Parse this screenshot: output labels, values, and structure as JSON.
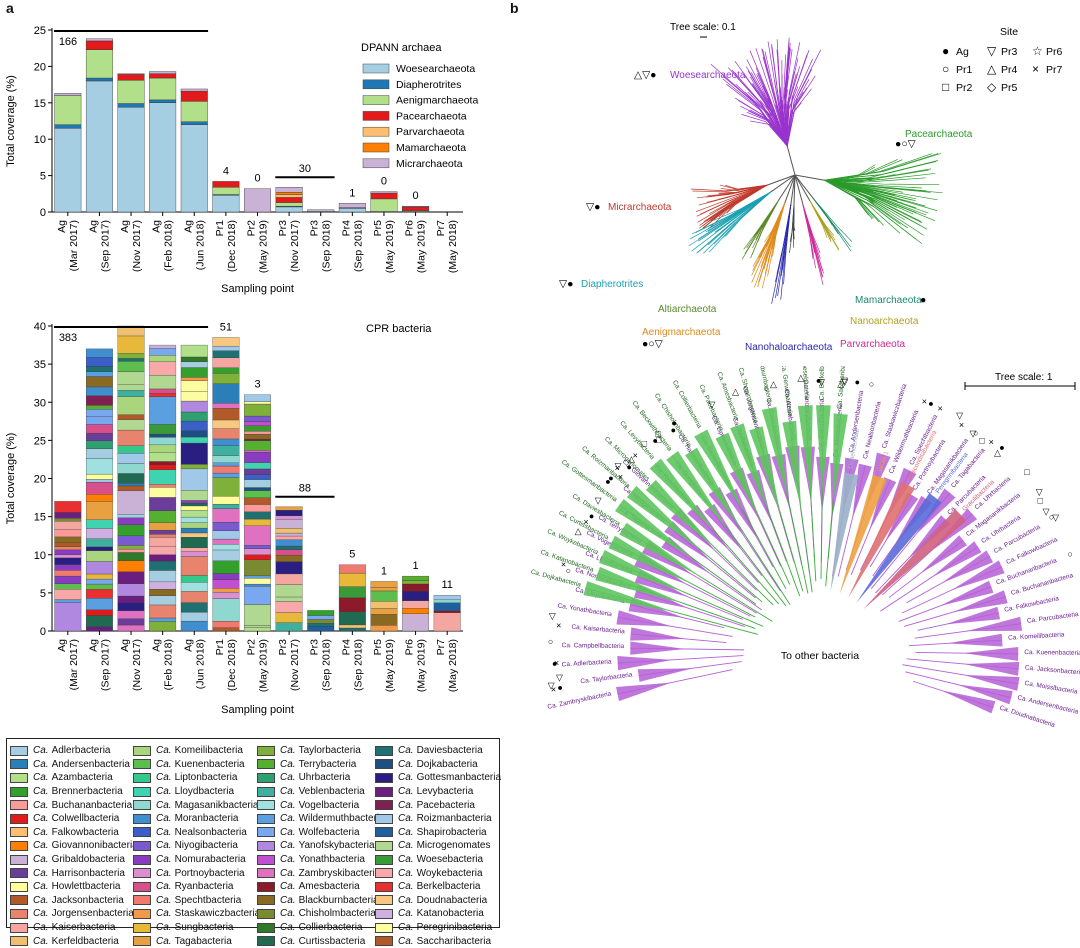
{
  "panel_a": "a",
  "panel_b": "b",
  "chart_data": [
    {
      "type": "bar",
      "stacked": true,
      "title": "DPANN archaea",
      "ylabel": "Total coverage (%)",
      "xlabel": "Sampling point",
      "ylim": [
        0,
        25
      ],
      "yticks": [
        0,
        5,
        10,
        15,
        20,
        25
      ],
      "categories": [
        {
          "site": "Ag",
          "date": "(Mar 2017)"
        },
        {
          "site": "Ag",
          "date": "(Sep 2017)"
        },
        {
          "site": "Ag",
          "date": "(Nov 2017)"
        },
        {
          "site": "Ag",
          "date": "(Feb 2018)"
        },
        {
          "site": "Ag",
          "date": "(Jun 2018)"
        },
        {
          "site": "Pr1",
          "date": "(Dec 2018)"
        },
        {
          "site": "Pr2",
          "date": "(May 2019)"
        },
        {
          "site": "Pr3",
          "date": "(Nov 2017)"
        },
        {
          "site": "Pr3",
          "date": "(Sep 2018)"
        },
        {
          "site": "Pr4",
          "date": "(Sep 2018)"
        },
        {
          "site": "Pr5",
          "date": "(May 2019)"
        },
        {
          "site": "Pr6",
          "date": "(May 2019)"
        },
        {
          "site": "Pr7",
          "date": "(May 2018)"
        }
      ],
      "series": [
        {
          "name": "Woesearchaeota",
          "color": "#a6cee3",
          "values": [
            11.5,
            18.0,
            14.4,
            15.0,
            12.0,
            2.3,
            0,
            0.7,
            0.1,
            0.5,
            0.1,
            0.1,
            0
          ]
        },
        {
          "name": "Diapherotrites",
          "color": "#1f78b4",
          "values": [
            0.5,
            0.4,
            0.5,
            0.4,
            0.4,
            0.1,
            0,
            0.1,
            0,
            0.1,
            0,
            0,
            0
          ]
        },
        {
          "name": "Aenigmarchaeota",
          "color": "#b2df8a",
          "values": [
            4.0,
            3.9,
            3.2,
            3.0,
            2.8,
            1.0,
            0,
            0.5,
            0,
            0,
            1.7,
            0.1,
            0
          ]
        },
        {
          "name": "Pacearchaeota",
          "color": "#e31a1c",
          "values": [
            0,
            1.2,
            0.8,
            0.6,
            1.4,
            0.8,
            0,
            0.7,
            0,
            0,
            0.8,
            0.5,
            0
          ]
        },
        {
          "name": "Parvarchaeota",
          "color": "#fdbf6f",
          "values": [
            0,
            0,
            0,
            0,
            0,
            0,
            0,
            0.4,
            0,
            0,
            0,
            0,
            0
          ]
        },
        {
          "name": "Mamarchaeota",
          "color": "#ff7f00",
          "values": [
            0,
            0,
            0,
            0,
            0,
            0,
            0,
            0.3,
            0,
            0,
            0,
            0,
            0
          ]
        },
        {
          "name": "Micrarchaeota",
          "color": "#cab2d6",
          "values": [
            0.3,
            0.3,
            0.1,
            0.3,
            0.3,
            0,
            3.2,
            0.7,
            0.2,
            0.6,
            0.2,
            0.1,
            0
          ]
        }
      ],
      "annotations": [
        {
          "text": "166",
          "from": 0,
          "to": 4,
          "line": true
        },
        {
          "text": "4",
          "at": 5
        },
        {
          "text": "0",
          "at": 6
        },
        {
          "text": "30",
          "from": 7,
          "to": 8,
          "line": true
        },
        {
          "text": "1",
          "at": 9
        },
        {
          "text": "0",
          "at": 10
        },
        {
          "text": "0",
          "at": 11
        }
      ]
    },
    {
      "type": "bar",
      "stacked": true,
      "title": "CPR bacteria",
      "ylabel": "Total coverage (%)",
      "xlabel": "Sampling point",
      "ylim": [
        0,
        40
      ],
      "yticks": [
        0,
        5,
        10,
        15,
        20,
        25,
        30,
        35,
        40
      ],
      "categories": [
        {
          "site": "Ag",
          "date": "(Mar 2017)"
        },
        {
          "site": "Ag",
          "date": "(Sep 2017)"
        },
        {
          "site": "Ag",
          "date": "(Nov 2017)"
        },
        {
          "site": "Ag",
          "date": "(Feb 2018)"
        },
        {
          "site": "Ag",
          "date": "(Jun 2018)"
        },
        {
          "site": "Pr1",
          "date": "(Dec 2018)"
        },
        {
          "site": "Pr2",
          "date": "(May 2019)"
        },
        {
          "site": "Pr3",
          "date": "(Nov 2017)"
        },
        {
          "site": "Pr3",
          "date": "(Sep 2018)"
        },
        {
          "site": "Pr4",
          "date": "(Sep 2018)"
        },
        {
          "site": "Pr5",
          "date": "(May 2019)"
        },
        {
          "site": "Pr6",
          "date": "(May 2019)"
        },
        {
          "site": "Pr7",
          "date": "(May 2018)"
        }
      ],
      "totals": [
        17.0,
        37.0,
        40.0,
        37.5,
        37.5,
        38.5,
        31.0,
        16.3,
        2.7,
        8.7,
        6.5,
        7.2,
        4.7
      ],
      "annotations": [
        {
          "text": "383",
          "from": 0,
          "to": 4,
          "line": true
        },
        {
          "text": "51",
          "at": 5
        },
        {
          "text": "3",
          "at": 6
        },
        {
          "text": "88",
          "from": 7,
          "to": 8,
          "line": true
        },
        {
          "text": "5",
          "at": 9
        },
        {
          "text": "1",
          "at": 10
        },
        {
          "text": "1",
          "at": 11
        },
        {
          "text": "11",
          "at": 12
        }
      ]
    }
  ],
  "legend": {
    "prefix": "Ca.",
    "items": [
      {
        "name": "Adlerbacteria",
        "color": "#a6cee3"
      },
      {
        "name": "Andersenbacteria",
        "color": "#2a7fb8"
      },
      {
        "name": "Azambacteria",
        "color": "#b2df8a"
      },
      {
        "name": "Brennerbacteria",
        "color": "#33a02c"
      },
      {
        "name": "Buchananbacteria",
        "color": "#fb9a99"
      },
      {
        "name": "Colwellbacteria",
        "color": "#e31a1c"
      },
      {
        "name": "Falkowbacteria",
        "color": "#fdbf6f"
      },
      {
        "name": "Giovannonibacteria",
        "color": "#ff7f00"
      },
      {
        "name": "Gribaldobacteria",
        "color": "#cab2d6"
      },
      {
        "name": "Harrisonbacteria",
        "color": "#6a3d9a"
      },
      {
        "name": "Howlettbacteria",
        "color": "#ffff99"
      },
      {
        "name": "Jacksonbacteria",
        "color": "#b15928"
      },
      {
        "name": "Jorgensenbacteria",
        "color": "#e8846e"
      },
      {
        "name": "Kaiserbacteria",
        "color": "#f4a6a0"
      },
      {
        "name": "Kerfeldbacteria",
        "color": "#f0c070"
      },
      {
        "name": "Komeilibacteria",
        "color": "#a9d67c"
      },
      {
        "name": "Kuenenbacteria",
        "color": "#5cbf4d"
      },
      {
        "name": "Liptonbacteria",
        "color": "#33c98a"
      },
      {
        "name": "Lloydbacteria",
        "color": "#3fd4b0"
      },
      {
        "name": "Magasanikbacteria",
        "color": "#8fd8d0"
      },
      {
        "name": "Moranbacteria",
        "color": "#3f8fd0"
      },
      {
        "name": "Nealsonbacteria",
        "color": "#3a5fc8"
      },
      {
        "name": "Niyogibacteria",
        "color": "#7a5ad0"
      },
      {
        "name": "Nomurabacteria",
        "color": "#8a3cc0"
      },
      {
        "name": "Portnoybacteria",
        "color": "#d98fd0"
      },
      {
        "name": "Ryanbacteria",
        "color": "#d84f8a"
      },
      {
        "name": "Spechtbacteria",
        "color": "#f07a70"
      },
      {
        "name": "Staskawiczbacteria",
        "color": "#f39a4a"
      },
      {
        "name": "Sungbacteria",
        "color": "#e8b83a"
      },
      {
        "name": "Tagabacteria",
        "color": "#e8a040"
      },
      {
        "name": "Taylorbacteria",
        "color": "#7fb03a"
      },
      {
        "name": "Terrybacteria",
        "color": "#55b030"
      },
      {
        "name": "Uhrbacteria",
        "color": "#2fa070"
      },
      {
        "name": "Veblenbacteria",
        "color": "#3fb0a0"
      },
      {
        "name": "Vogelbacteria",
        "color": "#a0e0e0"
      },
      {
        "name": "Wildermuthbacteria",
        "color": "#5aa0e0"
      },
      {
        "name": "Wolfebacteria",
        "color": "#7aa8f0"
      },
      {
        "name": "Yanofskybacteria",
        "color": "#b088e0"
      },
      {
        "name": "Yonathbacteria",
        "color": "#c050d0"
      },
      {
        "name": "Zambryskibacteria",
        "color": "#e070c0"
      },
      {
        "name": "Amesbacteria",
        "color": "#8c1a2a"
      },
      {
        "name": "Blackburnbacteria",
        "color": "#8a6a20"
      },
      {
        "name": "Chisholmbacteria",
        "color": "#7a8a30"
      },
      {
        "name": "Collierbacteria",
        "color": "#2f7a2a"
      },
      {
        "name": "Curtissbacteria",
        "color": "#1f6a50"
      },
      {
        "name": "Daviesbacteria",
        "color": "#1f7070"
      },
      {
        "name": "Dojkabacteria",
        "color": "#1f4f80"
      },
      {
        "name": "Gottesmanbacteria",
        "color": "#2a1f80"
      },
      {
        "name": "Levybacteria",
        "color": "#6a1f80"
      },
      {
        "name": "Pacebacteria",
        "color": "#801f50"
      },
      {
        "name": "Roizmanbacteria",
        "color": "#a0c8e8"
      },
      {
        "name": "Shapirobacteria",
        "color": "#1f5fa0"
      },
      {
        "name": "Microgenomates",
        "color": "#b0d890"
      },
      {
        "name": "Woesebacteria",
        "color": "#3a9a3a"
      },
      {
        "name": "Woykebacteria",
        "color": "#f8a8a8"
      },
      {
        "name": "Berkelbacteria",
        "color": "#e83030"
      },
      {
        "name": "Doudnabacteria",
        "color": "#f8c880"
      },
      {
        "name": "Katanobacteria",
        "color": "#d0b0e0"
      },
      {
        "name": "Peregrinibacteria",
        "color": "#fcfca0"
      },
      {
        "name": "Saccharibacteria",
        "color": "#b05a28"
      }
    ]
  },
  "tree_top": {
    "scale_label": "Tree scale: 0.1",
    "site_title": "Site",
    "sites": [
      {
        "symbol": "●",
        "name": "Ag"
      },
      {
        "symbol": "▽",
        "name": "Pr3"
      },
      {
        "symbol": "☆",
        "name": "Pr6"
      },
      {
        "symbol": "○",
        "name": "Pr1"
      },
      {
        "symbol": "△",
        "name": "Pr4"
      },
      {
        "symbol": "×",
        "name": "Pr7"
      },
      {
        "symbol": "□",
        "name": "Pr2"
      },
      {
        "symbol": "◇",
        "name": "Pr5"
      }
    ],
    "clades": [
      {
        "name": "Woesearchaeota",
        "symbols": "△▽●",
        "color": "#9933cc"
      },
      {
        "name": "Pacearchaeota",
        "symbols": "●○▽",
        "color": "#2a9a2a"
      },
      {
        "name": "Micrarchaeota",
        "symbols": "▽●",
        "color": "#c0392b"
      },
      {
        "name": "Diapherotrites",
        "symbols": "▽●",
        "color": "#1aa0b0"
      },
      {
        "name": "Altiarchaeota",
        "symbols": "",
        "color": "#5a8a2a"
      },
      {
        "name": "Aenigmarchaeota",
        "symbols": "●○▽",
        "color": "#e08a1a"
      },
      {
        "name": "Nanohaloarchaeota",
        "symbols": "",
        "color": "#2a2ab0"
      },
      {
        "name": "Parvarchaeota",
        "symbols": "",
        "color": "#cc2a9a"
      },
      {
        "name": "Nanoarchaeota",
        "symbols": "",
        "color": "#b0a020"
      },
      {
        "name": "Mamarchaeota",
        "symbols": "●",
        "color": "#1a8a6a"
      }
    ]
  },
  "tree_bottom": {
    "scale_label": "Tree scale: 1",
    "center_label": "To other bacteria",
    "prefix": "Ca.",
    "green_labels": [
      "Dojkabacteria",
      "Katanobacteria",
      "Woykebacteria",
      "Curtissbacteria",
      "Daviesbacteria",
      "Gottesmanbacteria",
      "Roizmanbacteria",
      "Microgenomates",
      "Levybacteria",
      "Beckwithbacteria",
      "Chisholmbacteria",
      "Collierbacteria",
      "Pacebacteria",
      "Amesbacteria",
      "Shapirobacteria",
      "Blackburnbacteria",
      "Gerwebacteria",
      "Woesebacteria",
      "Berkelbacteria",
      "Saccharibacteria"
    ],
    "mid_labels": [
      "Dependentiae",
      "WOR-1",
      "Absconditabacteria",
      "Peregrinibacteria",
      "Gracilibacteria"
    ],
    "purple_labels": [
      "Zambryskibacteria",
      "Taylorbacteria",
      "Adlerbacteria",
      "Campbellbacteria",
      "Kaiserbacteria",
      "Yonathbacteria",
      "Lloydbacteria",
      "Nomurabacteria",
      "Lloydbacteria",
      "Vogelbacteria",
      "Terrybacteria",
      "Tagabacteria",
      "Niyogibacteria",
      "Giovannonibacteria",
      "Ryanbacteria",
      "Sungbacteria",
      "Harrisonbacteria",
      "Colwellbacteria",
      "Liptonbacteria",
      "Wolfebacteria",
      "Jorgensenbacteria",
      "Parcubacteria",
      "Azambacteria",
      "Yanofskybacteria",
      "Parcubacteria",
      "Moranbacteria",
      "Andersenbacteria",
      "Nealsonbacteria",
      "Staskawiczbacteria",
      "Wildermuthbacteria",
      "Spechtbacteria",
      "Portnoybacteria",
      "Magasanikbacteria",
      "Tagabacteria",
      "Parcubacteria",
      "Uhrbacteria",
      "Magasanikbacteria",
      "Uhrbacteria",
      "Parcubacteria",
      "Falkowbacteria",
      "Buchananbacteria",
      "Buchananbacteria",
      "Falkowbacteria",
      "Parcubacteria",
      "Komeilibacteria",
      "Kuenenbacteria",
      "Jacksonbacteria",
      "Moisslbacteria",
      "Andersenbacteria",
      "Doudnabacteria"
    ]
  }
}
